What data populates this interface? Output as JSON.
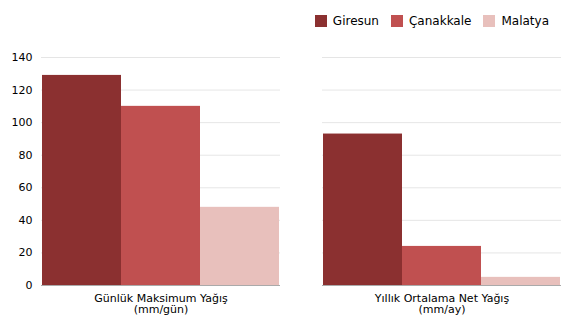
{
  "chart_data": {
    "type": "bar",
    "categories": [
      "Günlük Maksimum Yağış\n(mm/gün)",
      "Yıllık Ortalama Net Yağış\n(mm/ay)"
    ],
    "series": [
      {
        "name": "Giresun",
        "color": "#8B3030",
        "values": [
          129,
          93
        ]
      },
      {
        "name": "Çanakkale",
        "color": "#C05050",
        "values": [
          110,
          24
        ]
      },
      {
        "name": "Malatya",
        "color": "#E8C0BC",
        "values": [
          48,
          5
        ]
      }
    ],
    "ylim": [
      0,
      140
    ],
    "yticks": [
      0,
      20,
      40,
      60,
      80,
      100,
      120,
      140
    ],
    "grid": true,
    "legend": "upper right"
  }
}
